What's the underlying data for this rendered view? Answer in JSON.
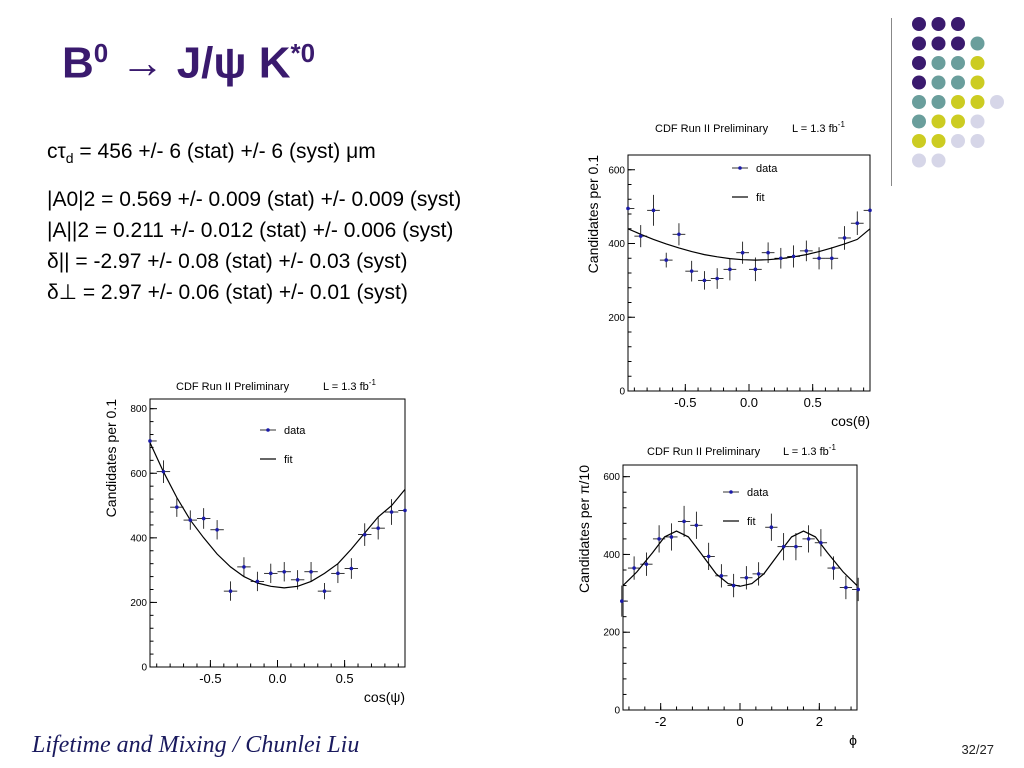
{
  "slide": {
    "title_prefix": "B",
    "title_sup1": "0",
    "title_mid": " → J/ψ K",
    "title_sup2": "*0",
    "footer": "Lifetime and Mixing / Chunlei Liu",
    "page_number": "32/27"
  },
  "decoration": {
    "colors": {
      "purple": "#3a1a6e",
      "teal": "#6a9e9c",
      "yellow": "#cccc22",
      "lavender": "#d6d6e8"
    },
    "dot_rows": [
      [
        "purple",
        "purple",
        "purple"
      ],
      [
        "purple",
        "purple",
        "purple",
        "teal"
      ],
      [
        "purple",
        "teal",
        "teal",
        "yellow"
      ],
      [
        "purple",
        "teal",
        "teal",
        "yellow"
      ],
      [
        "teal",
        "teal",
        "yellow",
        "yellow",
        "lavender"
      ],
      [
        "teal",
        "yellow",
        "yellow",
        "lavender"
      ],
      [
        "yellow",
        "yellow",
        "lavender",
        "lavender"
      ],
      [
        "lavender",
        "lavender"
      ]
    ]
  },
  "results": {
    "ctau_lhs": "cτ",
    "ctau_sub": "d",
    "ctau_rhs": " = 456 +/- 6 (stat) +/- 6 (syst) μm",
    "lines": [
      "|A0|2 = 0.569 +/- 0.009 (stat) +/- 0.009 (syst)",
      "|A||2 = 0.211 +/- 0.012 (stat) +/- 0.006 (syst)",
      "δ|| = -2.97 +/- 0.08 (stat) +/- 0.03 (syst)",
      "δ⊥ = 2.97 +/- 0.06 (stat) +/- 0.01 (syst)"
    ]
  },
  "colors": {
    "data_marker": "#1a1aa8",
    "fit": "#000000",
    "frame": "#000000"
  },
  "chart_data": [
    {
      "id": "cos-theta",
      "type": "scatter",
      "header": "CDF Run II Preliminary",
      "lumi": "L = 1.3 fb",
      "lumi_sup": "-1",
      "xlabel": "cos(θ)",
      "ylabel": "Candidates per 0.1",
      "xlim": [
        -0.95,
        0.95
      ],
      "ylim": [
        0,
        640
      ],
      "xticks": [
        -0.5,
        0.0,
        0.5
      ],
      "xtick_labels": [
        "-0.5",
        "0.0",
        "0.5"
      ],
      "yticks": [
        0,
        200,
        400,
        600
      ],
      "ytick_labels": [
        "0",
        "200",
        "400",
        "600"
      ],
      "legend": {
        "data": "data",
        "fit": "fit"
      },
      "legend_position": "top-right",
      "x": [
        -0.95,
        -0.85,
        -0.75,
        -0.65,
        -0.55,
        -0.45,
        -0.35,
        -0.25,
        -0.15,
        -0.05,
        0.05,
        0.15,
        0.25,
        0.35,
        0.45,
        0.55,
        0.65,
        0.75,
        0.85,
        0.95
      ],
      "y": [
        495,
        420,
        490,
        355,
        425,
        325,
        300,
        305,
        330,
        375,
        330,
        375,
        360,
        365,
        380,
        360,
        360,
        415,
        455,
        490
      ],
      "err": [
        35,
        30,
        42,
        20,
        30,
        28,
        25,
        28,
        30,
        30,
        32,
        28,
        28,
        30,
        28,
        30,
        30,
        32,
        32,
        42
      ],
      "fit_x": [
        -0.95,
        -0.85,
        -0.75,
        -0.65,
        -0.55,
        -0.45,
        -0.35,
        -0.25,
        -0.15,
        -0.05,
        0.05,
        0.15,
        0.25,
        0.35,
        0.45,
        0.55,
        0.65,
        0.75,
        0.85,
        0.95
      ],
      "fit_y": [
        440,
        425,
        411,
        399,
        388,
        378,
        370,
        364,
        359,
        356,
        355,
        356,
        359,
        364,
        370,
        378,
        388,
        399,
        411,
        440
      ]
    },
    {
      "id": "cos-psi",
      "type": "scatter",
      "header": "CDF Run II Preliminary",
      "lumi": "L = 1.3 fb",
      "lumi_sup": "-1",
      "xlabel": "cos(ψ)",
      "ylabel": "Candidates per 0.1",
      "xlim": [
        -0.95,
        0.95
      ],
      "ylim": [
        0,
        830
      ],
      "xticks": [
        -0.5,
        0.0,
        0.5
      ],
      "xtick_labels": [
        "-0.5",
        "0.0",
        "0.5"
      ],
      "yticks": [
        0,
        200,
        400,
        600,
        800
      ],
      "ytick_labels": [
        "0",
        "200",
        "400",
        "600",
        "800"
      ],
      "legend": {
        "data": "data",
        "fit": "fit"
      },
      "legend_position": "top-right",
      "x": [
        -0.95,
        -0.85,
        -0.75,
        -0.65,
        -0.55,
        -0.45,
        -0.35,
        -0.25,
        -0.15,
        -0.05,
        0.05,
        0.15,
        0.25,
        0.35,
        0.45,
        0.55,
        0.65,
        0.75,
        0.85,
        0.95
      ],
      "y": [
        700,
        605,
        495,
        455,
        460,
        425,
        235,
        310,
        265,
        290,
        295,
        270,
        295,
        235,
        290,
        305,
        410,
        430,
        480,
        485
      ],
      "err": [
        45,
        35,
        30,
        30,
        32,
        30,
        30,
        30,
        30,
        30,
        30,
        30,
        30,
        25,
        30,
        32,
        35,
        35,
        40,
        40
      ],
      "fit_x": [
        -0.95,
        -0.85,
        -0.75,
        -0.65,
        -0.55,
        -0.45,
        -0.35,
        -0.25,
        -0.15,
        -0.05,
        0.05,
        0.15,
        0.25,
        0.35,
        0.45,
        0.55,
        0.65,
        0.75,
        0.85,
        0.95
      ],
      "fit_y": [
        695,
        605,
        525,
        455,
        400,
        350,
        310,
        280,
        260,
        250,
        245,
        250,
        265,
        290,
        320,
        365,
        415,
        465,
        500,
        550
      ]
    },
    {
      "id": "phi",
      "type": "scatter",
      "header": "CDF Run II Preliminary",
      "lumi": "L = 1.3 fb",
      "lumi_sup": "-1",
      "xlabel": "ϕ",
      "ylabel": "Candidates per π/10",
      "xlim": [
        -2.95,
        2.95
      ],
      "ylim": [
        0,
        630
      ],
      "xticks": [
        -2,
        0,
        2
      ],
      "xtick_labels": [
        "-2",
        "0",
        "2"
      ],
      "yticks": [
        0,
        200,
        400,
        600
      ],
      "ytick_labels": [
        "0",
        "200",
        "400",
        "600"
      ],
      "legend": {
        "data": "data",
        "fit": "fit"
      },
      "legend_position": "top-right",
      "x": [
        -2.98,
        -2.67,
        -2.36,
        -2.04,
        -1.73,
        -1.41,
        -1.1,
        -0.79,
        -0.47,
        -0.16,
        0.16,
        0.47,
        0.79,
        1.1,
        1.41,
        1.73,
        2.04,
        2.36,
        2.67,
        2.98
      ],
      "y": [
        280,
        365,
        375,
        440,
        445,
        485,
        475,
        395,
        345,
        320,
        340,
        350,
        470,
        420,
        420,
        440,
        430,
        365,
        315,
        310
      ],
      "err": [
        40,
        30,
        30,
        35,
        35,
        40,
        35,
        35,
        30,
        30,
        30,
        30,
        35,
        35,
        35,
        35,
        35,
        30,
        30,
        30
      ],
      "fit_x": [
        -2.95,
        -2.6,
        -2.2,
        -1.9,
        -1.6,
        -1.3,
        -1.0,
        -0.6,
        -0.3,
        0.0,
        0.3,
        0.6,
        1.0,
        1.3,
        1.6,
        1.9,
        2.2,
        2.6,
        2.95
      ],
      "fit_y": [
        320,
        355,
        405,
        445,
        460,
        445,
        405,
        350,
        325,
        318,
        325,
        350,
        405,
        445,
        460,
        445,
        405,
        355,
        320
      ]
    }
  ]
}
